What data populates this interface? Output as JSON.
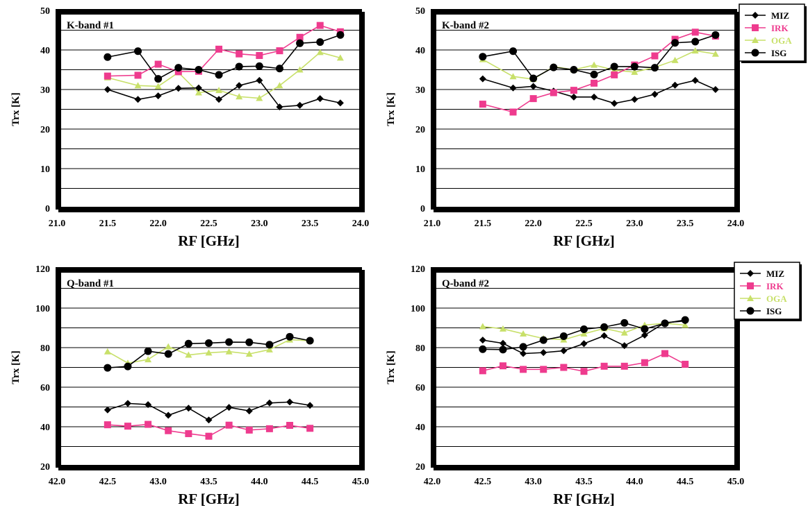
{
  "colors": {
    "MIZ": "#000000",
    "IRK": "#ee3b8e",
    "OGA": "#c8e06a",
    "ISG": "#000000",
    "grid": "#000000",
    "frame": "#000000"
  },
  "chart_data": [
    {
      "type": "line",
      "title": "K-band #1",
      "xlabel": "RF [GHz]",
      "ylabel": "Trx [K]",
      "xlim": [
        21.0,
        24.0
      ],
      "ylim": [
        0,
        50
      ],
      "xticks": [
        "21.0",
        "21.5",
        "22.0",
        "22.5",
        "23.0",
        "23.5",
        "24.0"
      ],
      "yticks": [
        "0",
        "10",
        "20",
        "30",
        "40",
        "50"
      ],
      "grid_step": 5,
      "legend": "none",
      "x": [
        21.5,
        21.8,
        22.0,
        22.2,
        22.4,
        22.6,
        22.8,
        23.0,
        23.2,
        23.4,
        23.6,
        23.8
      ],
      "series": [
        {
          "name": "MIZ",
          "marker": "diamond",
          "values": [
            30,
            27.5,
            28.4,
            30.3,
            30.4,
            27.5,
            31,
            32.3,
            25.6,
            26,
            27.7,
            26.6
          ]
        },
        {
          "name": "IRK",
          "marker": "square",
          "values": [
            33.4,
            33.6,
            36.4,
            34.5,
            34.6,
            40.2,
            39,
            38.6,
            39.8,
            43.2,
            46.2,
            44.6
          ]
        },
        {
          "name": "OGA",
          "marker": "triangle",
          "values": [
            33,
            31,
            30.8,
            34.3,
            29.2,
            29.8,
            28.2,
            27.8,
            31,
            35,
            39.4,
            38
          ]
        },
        {
          "name": "ISG",
          "marker": "circle",
          "values": [
            38.2,
            39.7,
            32.7,
            35.5,
            35,
            33.7,
            35.8,
            35.9,
            35.3,
            41.7,
            42,
            43.8
          ]
        }
      ]
    },
    {
      "type": "line",
      "title": "K-band #2",
      "xlabel": "RF [GHz]",
      "ylabel": "Trx [K]",
      "xlim": [
        21.0,
        24.0
      ],
      "ylim": [
        0,
        50
      ],
      "xticks": [
        "21.0",
        "21.5",
        "22.0",
        "22.5",
        "23.0",
        "23.5",
        "24.0"
      ],
      "yticks": [
        "0",
        "10",
        "20",
        "30",
        "40",
        "50"
      ],
      "grid_step": 5,
      "legend": "right",
      "x": [
        21.5,
        21.8,
        22.0,
        22.2,
        22.4,
        22.6,
        22.8,
        23.0,
        23.2,
        23.4,
        23.6,
        23.8
      ],
      "series": [
        {
          "name": "MIZ",
          "marker": "diamond",
          "values": [
            32.7,
            30.4,
            30.8,
            29.6,
            28.1,
            28.1,
            26.5,
            27.5,
            28.8,
            31.1,
            32.3,
            30
          ]
        },
        {
          "name": "IRK",
          "marker": "square",
          "values": [
            26.3,
            24.3,
            27.7,
            29.2,
            29.8,
            31.6,
            33.7,
            36.2,
            38.5,
            42.7,
            44.5,
            43.5
          ]
        },
        {
          "name": "OGA",
          "marker": "triangle",
          "values": [
            37.6,
            33.3,
            32.6,
            35.8,
            35,
            36.2,
            34.9,
            34.4,
            35.6,
            37.4,
            39.8,
            39
          ]
        },
        {
          "name": "ISG",
          "marker": "circle",
          "values": [
            38.3,
            39.7,
            32.8,
            35.6,
            35,
            33.8,
            35.8,
            35.8,
            35.5,
            41.8,
            42.1,
            43.8
          ]
        }
      ]
    },
    {
      "type": "line",
      "title": "Q-band #1",
      "xlabel": "RF [GHz]",
      "ylabel": "Trx [K]",
      "xlim": [
        42.0,
        45.0
      ],
      "ylim": [
        20,
        120
      ],
      "xticks": [
        "42.0",
        "42.5",
        "43.0",
        "43.5",
        "44.0",
        "44.5",
        "45.0"
      ],
      "yticks": [
        "20",
        "40",
        "60",
        "80",
        "100",
        "120"
      ],
      "grid_step": 10,
      "legend": "none",
      "x": [
        42.5,
        42.7,
        42.9,
        43.1,
        43.3,
        43.5,
        43.7,
        43.9,
        44.1,
        44.3,
        44.5
      ],
      "series": [
        {
          "name": "MIZ",
          "marker": "diamond",
          "values": [
            48.5,
            51.8,
            51.2,
            45.8,
            49.4,
            43.4,
            49.8,
            48,
            52,
            52.5,
            50.8
          ]
        },
        {
          "name": "IRK",
          "marker": "square",
          "values": [
            41,
            40.3,
            41.2,
            38,
            36.5,
            35.2,
            40.8,
            38.3,
            39,
            40.7,
            39.2
          ]
        },
        {
          "name": "OGA",
          "marker": "triangle",
          "values": [
            78,
            72.2,
            74,
            80.5,
            76.3,
            77.4,
            78,
            76.8,
            79,
            84,
            83.5
          ]
        },
        {
          "name": "ISG",
          "marker": "circle",
          "values": [
            69.8,
            70.5,
            78.2,
            76.8,
            82,
            82.3,
            82.8,
            82.7,
            81.5,
            85.5,
            83.5
          ]
        }
      ]
    },
    {
      "type": "line",
      "title": "Q-band #2",
      "xlabel": "RF [GHz]",
      "ylabel": "Trx [K]",
      "xlim": [
        42.0,
        45.0
      ],
      "ylim": [
        20,
        120
      ],
      "xticks": [
        "42.0",
        "42.5",
        "43.0",
        "43.5",
        "44.0",
        "44.5",
        "45.0"
      ],
      "yticks": [
        "20",
        "40",
        "60",
        "80",
        "100",
        "120"
      ],
      "grid_step": 10,
      "legend": "right",
      "x": [
        42.5,
        42.7,
        42.9,
        43.1,
        43.3,
        43.5,
        43.7,
        43.9,
        44.1,
        44.3,
        44.5
      ],
      "series": [
        {
          "name": "MIZ",
          "marker": "diamond",
          "values": [
            83.8,
            82.2,
            77,
            77.5,
            78.4,
            82,
            86,
            81,
            86.3,
            92.6,
            93.5
          ]
        },
        {
          "name": "IRK",
          "marker": "square",
          "values": [
            68.3,
            70.8,
            69,
            69,
            70,
            68,
            70.6,
            70.6,
            72.4,
            77,
            71.6
          ]
        },
        {
          "name": "OGA",
          "marker": "triangle",
          "values": [
            90.7,
            89.5,
            87,
            84.6,
            84,
            87,
            89.7,
            87.5,
            91.4,
            92.3,
            91.4
          ]
        },
        {
          "name": "ISG",
          "marker": "circle",
          "values": [
            79.2,
            79,
            80.4,
            83.8,
            85.8,
            89.3,
            90.4,
            92.5,
            89.4,
            92.3,
            94
          ]
        }
      ]
    }
  ]
}
